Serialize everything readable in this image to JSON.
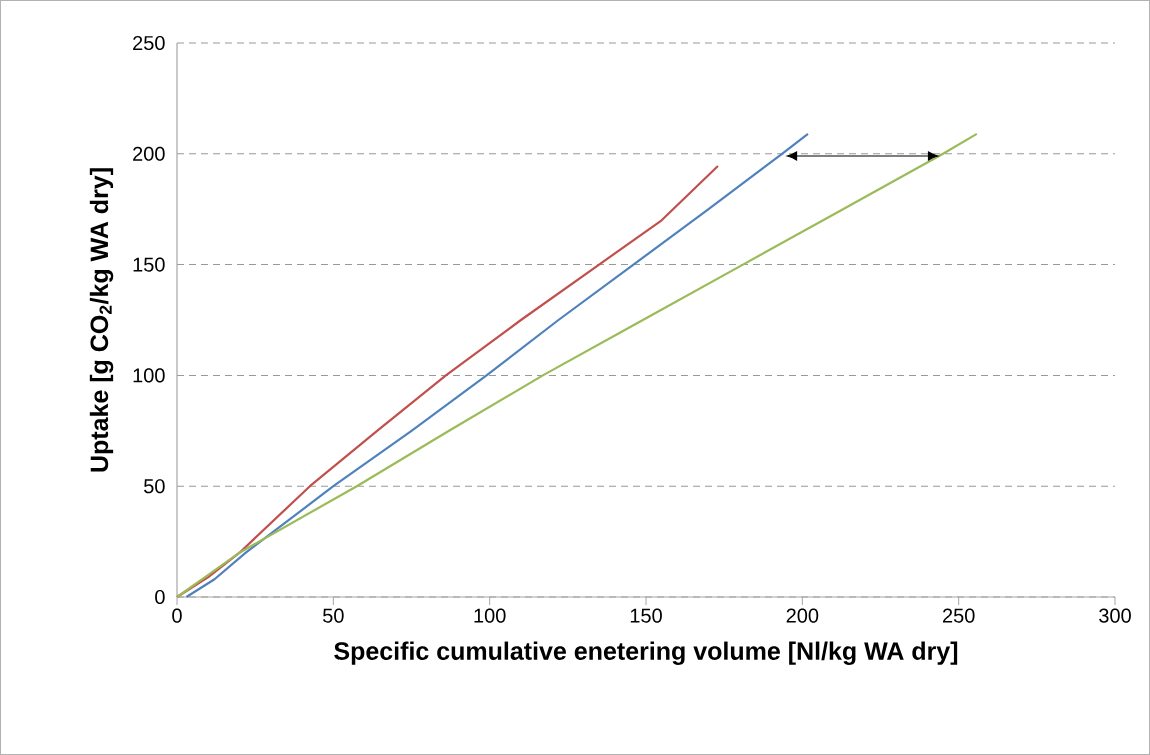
{
  "chart_data": {
    "type": "line",
    "xlabel": "Specific cumulative enetering volume  [Nl/kg WA dry]",
    "ylabel": "Uptake [g CO$_{2}$/kg WA dry]",
    "xlim": [
      0,
      300
    ],
    "ylim": [
      0,
      250
    ],
    "xticks": [
      0,
      50,
      100,
      150,
      200,
      250,
      300
    ],
    "yticks": [
      0,
      50,
      100,
      150,
      200,
      250
    ],
    "grid": "y",
    "marker": "none",
    "line_style": "solid",
    "series": [
      {
        "color": "#c0504d",
        "x": [
          0,
          10,
          20,
          42.5,
          64,
          86,
          110,
          135,
          155,
          173
        ],
        "values": [
          0,
          9,
          20,
          50,
          75,
          100,
          125,
          150,
          170,
          194.5
        ]
      },
      {
        "color": "#4f81bd",
        "x": [
          3,
          12,
          22,
          50,
          75,
          99,
          122,
          146,
          170,
          193.5,
          201.8
        ],
        "values": [
          0,
          8,
          20,
          50,
          75,
          100,
          125,
          150,
          175,
          200,
          209
        ]
      },
      {
        "color": "#9bbb59",
        "x": [
          0,
          10,
          20,
          57.5,
          87,
          117,
          149,
          181,
          213,
          245,
          255.8
        ],
        "values": [
          0,
          10,
          20,
          50,
          75,
          100,
          125,
          150,
          175,
          200,
          209
        ]
      }
    ]
  }
}
